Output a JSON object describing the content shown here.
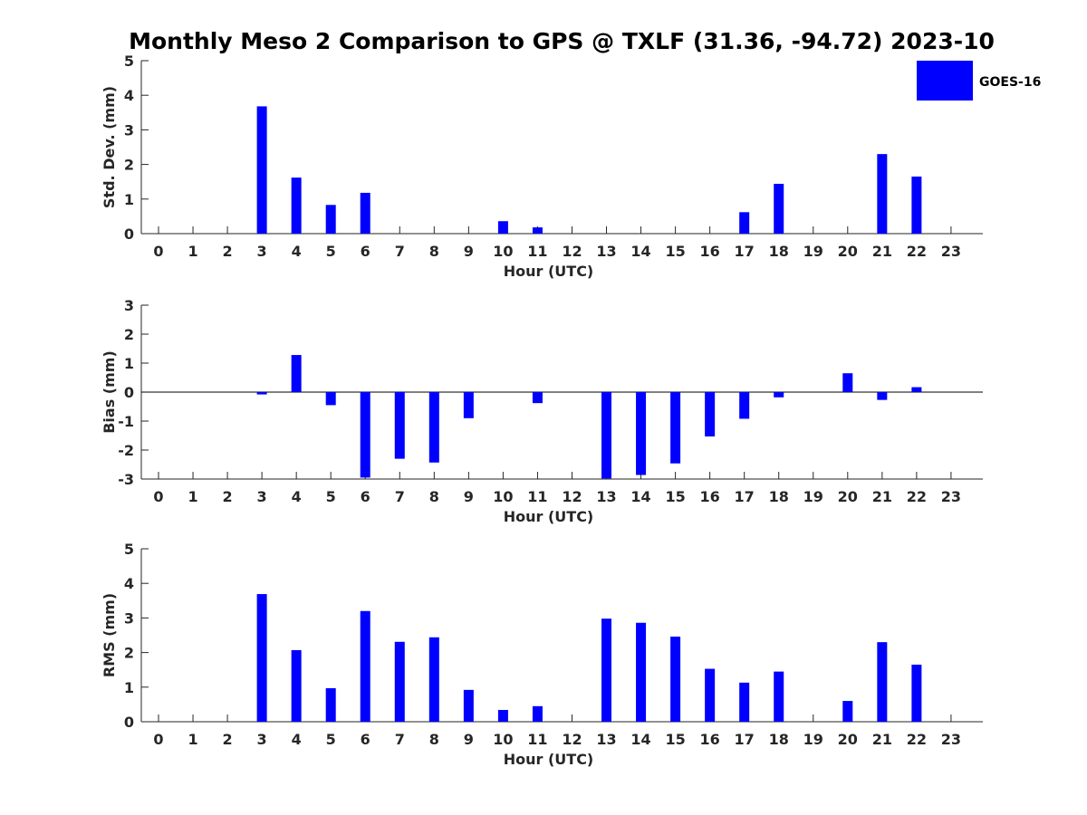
{
  "chart_data": {
    "type": "bar",
    "title": "Monthly Meso 2 Comparison to GPS @ TXLF (31.36, -94.72) 2023-10",
    "legend": {
      "label": "GOES-16",
      "color": "#0000ff",
      "placement": "top-right"
    },
    "categories": [
      "0",
      "1",
      "2",
      "3",
      "4",
      "5",
      "6",
      "7",
      "8",
      "9",
      "10",
      "11",
      "12",
      "13",
      "14",
      "15",
      "16",
      "17",
      "18",
      "19",
      "20",
      "21",
      "22",
      "23"
    ],
    "panels": [
      {
        "id": "std",
        "ylabel": "Std. Dev. (mm)",
        "xlabel": "Hour (UTC)",
        "ylim": [
          0,
          5
        ],
        "yticks": [
          "0",
          "1",
          "2",
          "3",
          "4",
          "5"
        ],
        "series": [
          {
            "name": "GOES-16",
            "values": [
              null,
              null,
              null,
              3.68,
              1.62,
              0.83,
              1.18,
              null,
              null,
              null,
              0.36,
              0.18,
              null,
              null,
              null,
              null,
              null,
              0.62,
              1.44,
              null,
              null,
              2.3,
              1.65,
              null
            ]
          }
        ]
      },
      {
        "id": "bias",
        "ylabel": "Bias (mm)",
        "xlabel": "Hour (UTC)",
        "ylim": [
          -3,
          3
        ],
        "yticks": [
          "-3",
          "-2",
          "-1",
          "0",
          "1",
          "2",
          "3"
        ],
        "series": [
          {
            "name": "GOES-16",
            "values": [
              null,
              null,
              null,
              -0.08,
              1.28,
              -0.45,
              -2.95,
              -2.3,
              -2.43,
              -0.9,
              null,
              -0.38,
              null,
              -2.98,
              -2.86,
              -2.46,
              -1.53,
              -0.92,
              -0.18,
              null,
              0.65,
              -0.27,
              0.17,
              null
            ]
          }
        ]
      },
      {
        "id": "rms",
        "ylabel": "RMS (mm)",
        "xlabel": "Hour (UTC)",
        "ylim": [
          0,
          5
        ],
        "yticks": [
          "0",
          "1",
          "2",
          "3",
          "4",
          "5"
        ],
        "series": [
          {
            "name": "GOES-16",
            "values": [
              null,
              null,
              null,
              3.69,
              2.07,
              0.97,
              3.2,
              2.31,
              2.44,
              0.92,
              0.34,
              0.45,
              null,
              2.98,
              2.86,
              2.46,
              1.53,
              1.13,
              1.45,
              null,
              0.6,
              2.3,
              1.65,
              null
            ]
          }
        ]
      }
    ]
  }
}
